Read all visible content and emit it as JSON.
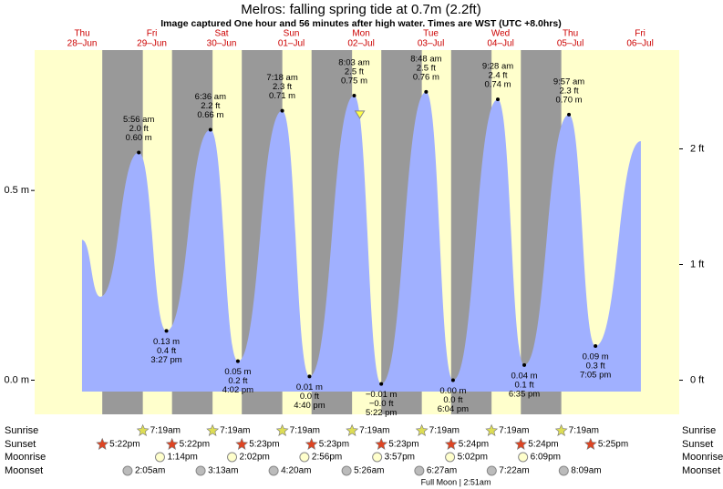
{
  "chart_data": {
    "type": "area",
    "title": "Melros: falling  spring tide at 0.7m (2.2ft)",
    "subtitle": "Image captured One hour and 56 minutes after high water. Times are WST (UTC +8.0hrs)",
    "days": [
      [
        "Thu",
        "28–Jun"
      ],
      [
        "Fri",
        "29–Jun"
      ],
      [
        "Sat",
        "30–Jun"
      ],
      [
        "Sun",
        "01–Jul"
      ],
      [
        "Mon",
        "02–Jul"
      ],
      [
        "Tue",
        "03–Jul"
      ],
      [
        "Wed",
        "04–Jul"
      ],
      [
        "Thu",
        "05–Jul"
      ],
      [
        "Fri",
        "06–Jul"
      ]
    ],
    "x": [
      10.4,
      16.7,
      29.93,
      39.45,
      54.6,
      64.03,
      79.3,
      88.67,
      104.05,
      113.37,
      128.8,
      138.07,
      153.47,
      162.58,
      177.95,
      187.08,
      202.7
    ],
    "values": [
      0.37,
      0.22,
      0.6,
      0.13,
      0.66,
      0.05,
      0.71,
      0.01,
      0.75,
      -0.01,
      0.76,
      0.0,
      0.74,
      0.04,
      0.7,
      0.09,
      0.63
    ],
    "value_labels": [
      null,
      null,
      "0.60 m",
      "0.13 m",
      "0.66 m",
      "0.05 m",
      "0.71 m",
      "0.01 m",
      "0.75 m",
      "−0.01 m",
      "0.76 m",
      "0.00 m",
      "0.74 m",
      "0.04 m",
      "0.70 m",
      "0.09 m",
      null
    ],
    "ft_labels": [
      null,
      null,
      "2.0 ft",
      "0.4 ft",
      "2.2 ft",
      "0.2 ft",
      "2.3 ft",
      "0.0 ft",
      "2.5 ft",
      "−0.0 ft",
      "2.5 ft",
      "0.0 ft",
      "2.4 ft",
      "0.1 ft",
      "2.3 ft",
      "0.3 ft",
      null
    ],
    "time_labels": [
      null,
      null,
      "5:56 am",
      "3:27 pm",
      "6:36 am",
      "4:02 pm",
      "7:18 am",
      "4:40 pm",
      "8:03 am",
      "5:22 pm",
      "8:48 am",
      "6:04 pm",
      "9:28 am",
      "6:35 pm",
      "9:57 am",
      "7:05 pm",
      null
    ],
    "color": "#a0b0ff",
    "marker": {
      "x": 105.98,
      "value": 0.7
    },
    "xlim": [
      -5.9,
      215.9
    ],
    "ylim": [
      -0.09,
      0.87
    ],
    "yticks": [
      {
        "value": 0,
        "label": "0.0 m"
      },
      {
        "value": 0.5,
        "label": "0.5 m"
      }
    ],
    "y2lim": [
      -0.295,
      2.854
    ],
    "y2ticks": [
      {
        "value": 0,
        "label": "0 ft"
      },
      {
        "value": 1,
        "label": "1 ft"
      },
      {
        "value": 2,
        "label": "2 ft"
      }
    ],
    "sunrise": {
      "label": "Sunrise",
      "times": [
        "7:19am",
        "7:19am",
        "7:19am",
        "7:19am",
        "7:19am",
        "7:19am",
        "7:19am"
      ],
      "x": [
        31.32,
        55.32,
        79.32,
        103.32,
        127.32,
        151.32,
        175.32
      ]
    },
    "sunset": {
      "label": "Sunset",
      "times": [
        "5:22pm",
        "5:22pm",
        "5:23pm",
        "5:23pm",
        "5:23pm",
        "5:24pm",
        "5:24pm",
        "5:25pm"
      ],
      "x": [
        17.37,
        41.37,
        65.38,
        89.38,
        113.38,
        137.4,
        161.4,
        185.42
      ]
    },
    "moonrise": {
      "label": "Moonrise",
      "times": [
        "1:14pm",
        "2:02pm",
        "2:56pm",
        "3:57pm",
        "5:02pm",
        "6:09pm"
      ],
      "x": [
        37.23,
        62.03,
        86.93,
        111.95,
        137.03,
        162.15
      ]
    },
    "moonset": {
      "label": "Moonset",
      "times": [
        "2:05am",
        "3:13am",
        "4:20am",
        "5:26am",
        "6:27am",
        "7:22am",
        "8:09am"
      ],
      "x": [
        26.08,
        51.22,
        76.33,
        101.43,
        126.45,
        151.37,
        176.15
      ]
    },
    "moon_phase": "Full Moon | 2:51am"
  }
}
